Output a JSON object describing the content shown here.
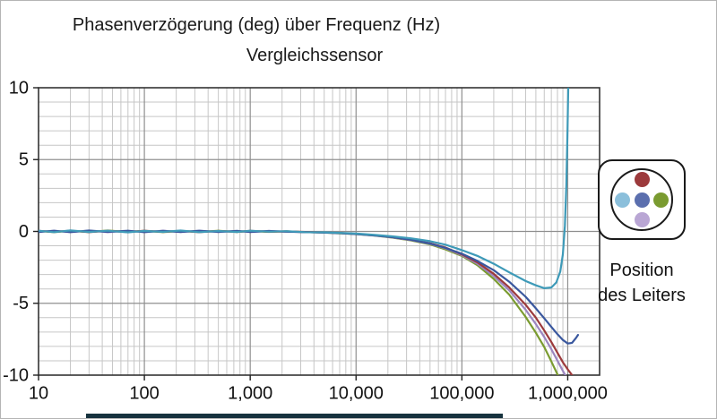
{
  "chart_data": {
    "type": "line",
    "title": "Phasenverzögerung (deg) über Frequenz (Hz)",
    "subtitle": "Vergleichssensor",
    "xlabel": "Frequenz (Hz)",
    "ylabel": "Phasenverzögerung (deg)",
    "x_axis": {
      "scale": "log",
      "min": 10,
      "max": 2000000,
      "tick_values": [
        10,
        100,
        1000,
        10000,
        100000,
        1000000
      ],
      "tick_labels": [
        "10",
        "100",
        "1,000",
        "10,000",
        "100,000",
        "1,000,000"
      ]
    },
    "y_axis": {
      "min": -10,
      "max": 10,
      "tick_values": [
        -10,
        -5,
        0,
        5,
        10
      ],
      "tick_labels": [
        "-10",
        "-5",
        "0",
        "5",
        "10"
      ],
      "minor_step": 1
    },
    "grid": true,
    "series": [
      {
        "name": "leiter-rechts-gruen",
        "color": "#7a9b30",
        "points": [
          [
            10,
            0.03
          ],
          [
            14,
            -0.05
          ],
          [
            20,
            0.04
          ],
          [
            30,
            -0.04
          ],
          [
            45,
            0.06
          ],
          [
            70,
            -0.03
          ],
          [
            100,
            0.04
          ],
          [
            150,
            -0.05
          ],
          [
            220,
            0.03
          ],
          [
            330,
            -0.04
          ],
          [
            500,
            0.05
          ],
          [
            750,
            -0.04
          ],
          [
            1000,
            0.03
          ],
          [
            1500,
            -0.03
          ],
          [
            2200,
            0.01
          ],
          [
            3300,
            -0.05
          ],
          [
            5000,
            -0.08
          ],
          [
            7000,
            -0.13
          ],
          [
            10000,
            -0.19
          ],
          [
            15000,
            -0.29
          ],
          [
            22000,
            -0.43
          ],
          [
            33000,
            -0.63
          ],
          [
            50000,
            -0.9
          ],
          [
            70000,
            -1.25
          ],
          [
            100000,
            -1.7
          ],
          [
            140000,
            -2.35
          ],
          [
            200000,
            -3.3
          ],
          [
            280000,
            -4.4
          ],
          [
            400000,
            -5.95
          ],
          [
            500000,
            -7.05
          ],
          [
            600000,
            -8.05
          ],
          [
            700000,
            -9.05
          ],
          [
            800000,
            -9.95
          ],
          [
            870000,
            -10.5
          ]
        ]
      },
      {
        "name": "leiter-unten-violett",
        "color": "#9c86c0",
        "points": [
          [
            10,
            -0.02
          ],
          [
            14,
            0.04
          ],
          [
            20,
            -0.04
          ],
          [
            30,
            0.05
          ],
          [
            45,
            -0.05
          ],
          [
            70,
            0.03
          ],
          [
            100,
            -0.04
          ],
          [
            150,
            0.05
          ],
          [
            220,
            -0.03
          ],
          [
            330,
            0.04
          ],
          [
            500,
            -0.04
          ],
          [
            750,
            0.02
          ],
          [
            1000,
            -0.03
          ],
          [
            1500,
            0.03
          ],
          [
            2200,
            -0.01
          ],
          [
            3300,
            -0.05
          ],
          [
            5000,
            -0.08
          ],
          [
            7000,
            -0.12
          ],
          [
            10000,
            -0.18
          ],
          [
            15000,
            -0.28
          ],
          [
            22000,
            -0.41
          ],
          [
            33000,
            -0.6
          ],
          [
            50000,
            -0.86
          ],
          [
            70000,
            -1.18
          ],
          [
            100000,
            -1.65
          ],
          [
            140000,
            -2.25
          ],
          [
            200000,
            -3.1
          ],
          [
            280000,
            -4.1
          ],
          [
            400000,
            -5.45
          ],
          [
            500000,
            -6.45
          ],
          [
            600000,
            -7.35
          ],
          [
            700000,
            -8.2
          ],
          [
            800000,
            -9.0
          ],
          [
            900000,
            -9.7
          ],
          [
            1000000,
            -10.3
          ],
          [
            1060000,
            -10.6
          ]
        ]
      },
      {
        "name": "leiter-oben-rot",
        "color": "#9c3a3c",
        "points": [
          [
            10,
            0.04
          ],
          [
            14,
            -0.03
          ],
          [
            20,
            0.05
          ],
          [
            30,
            -0.05
          ],
          [
            45,
            0.04
          ],
          [
            70,
            -0.04
          ],
          [
            100,
            0.05
          ],
          [
            150,
            -0.03
          ],
          [
            220,
            0.04
          ],
          [
            330,
            -0.05
          ],
          [
            500,
            0.03
          ],
          [
            750,
            -0.03
          ],
          [
            1000,
            0.04
          ],
          [
            1500,
            -0.02
          ],
          [
            2200,
            0.0
          ],
          [
            3300,
            -0.04
          ],
          [
            5000,
            -0.07
          ],
          [
            7000,
            -0.11
          ],
          [
            10000,
            -0.17
          ],
          [
            15000,
            -0.27
          ],
          [
            22000,
            -0.39
          ],
          [
            33000,
            -0.57
          ],
          [
            50000,
            -0.82
          ],
          [
            70000,
            -1.12
          ],
          [
            100000,
            -1.6
          ],
          [
            140000,
            -2.15
          ],
          [
            200000,
            -2.95
          ],
          [
            280000,
            -3.9
          ],
          [
            400000,
            -5.1
          ],
          [
            500000,
            -6.0
          ],
          [
            600000,
            -6.9
          ],
          [
            700000,
            -7.7
          ],
          [
            800000,
            -8.45
          ],
          [
            900000,
            -9.1
          ],
          [
            1000000,
            -9.6
          ],
          [
            1100000,
            -10.0
          ],
          [
            1160000,
            -10.4
          ]
        ]
      },
      {
        "name": "leiter-mitte-blau",
        "color": "#39579e",
        "points": [
          [
            10,
            -0.04
          ],
          [
            14,
            0.05
          ],
          [
            20,
            -0.05
          ],
          [
            30,
            0.06
          ],
          [
            45,
            -0.03
          ],
          [
            70,
            0.05
          ],
          [
            100,
            -0.05
          ],
          [
            150,
            0.04
          ],
          [
            220,
            -0.04
          ],
          [
            330,
            0.05
          ],
          [
            500,
            -0.03
          ],
          [
            750,
            0.04
          ],
          [
            1000,
            -0.04
          ],
          [
            1500,
            0.03
          ],
          [
            2200,
            -0.02
          ],
          [
            3300,
            -0.05
          ],
          [
            5000,
            -0.08
          ],
          [
            7000,
            -0.12
          ],
          [
            10000,
            -0.18
          ],
          [
            15000,
            -0.28
          ],
          [
            22000,
            -0.4
          ],
          [
            33000,
            -0.58
          ],
          [
            50000,
            -0.84
          ],
          [
            70000,
            -1.15
          ],
          [
            100000,
            -1.55
          ],
          [
            140000,
            -2.05
          ],
          [
            200000,
            -2.7
          ],
          [
            280000,
            -3.5
          ],
          [
            400000,
            -4.55
          ],
          [
            500000,
            -5.35
          ],
          [
            600000,
            -6.05
          ],
          [
            700000,
            -6.65
          ],
          [
            800000,
            -7.15
          ],
          [
            900000,
            -7.55
          ],
          [
            1000000,
            -7.8
          ],
          [
            1100000,
            -7.75
          ],
          [
            1200000,
            -7.4
          ],
          [
            1250000,
            -7.2
          ]
        ]
      },
      {
        "name": "leiter-links-hellblau",
        "color": "#3e9ab8",
        "points": [
          [
            10,
            0.05
          ],
          [
            14,
            -0.05
          ],
          [
            20,
            0.07
          ],
          [
            30,
            -0.04
          ],
          [
            45,
            0.05
          ],
          [
            70,
            -0.06
          ],
          [
            100,
            0.04
          ],
          [
            150,
            -0.03
          ],
          [
            220,
            0.06
          ],
          [
            330,
            -0.05
          ],
          [
            500,
            0.03
          ],
          [
            750,
            -0.04
          ],
          [
            1000,
            0.05
          ],
          [
            1500,
            -0.02
          ],
          [
            2200,
            0.02
          ],
          [
            3300,
            -0.05
          ],
          [
            5000,
            -0.06
          ],
          [
            7000,
            -0.1
          ],
          [
            10000,
            -0.15
          ],
          [
            15000,
            -0.24
          ],
          [
            22000,
            -0.34
          ],
          [
            33000,
            -0.48
          ],
          [
            50000,
            -0.68
          ],
          [
            70000,
            -0.92
          ],
          [
            100000,
            -1.3
          ],
          [
            140000,
            -1.7
          ],
          [
            200000,
            -2.25
          ],
          [
            280000,
            -2.85
          ],
          [
            400000,
            -3.45
          ],
          [
            500000,
            -3.75
          ],
          [
            600000,
            -3.95
          ],
          [
            700000,
            -3.9
          ],
          [
            780000,
            -3.55
          ],
          [
            850000,
            -2.8
          ],
          [
            900000,
            -1.6
          ],
          [
            940000,
            0.4
          ],
          [
            970000,
            3.2
          ],
          [
            995000,
            7.0
          ],
          [
            1015000,
            10.6
          ]
        ]
      }
    ]
  },
  "legend": {
    "title_line1": "Position",
    "title_line2": "des Leiters",
    "dots": [
      {
        "position": "top",
        "color": "#9c3a3c"
      },
      {
        "position": "left",
        "color": "#8bbfdb"
      },
      {
        "position": "center",
        "color": "#5b6fae"
      },
      {
        "position": "right",
        "color": "#7a9b30"
      },
      {
        "position": "bottom",
        "color": "#b9a6d4"
      }
    ]
  }
}
